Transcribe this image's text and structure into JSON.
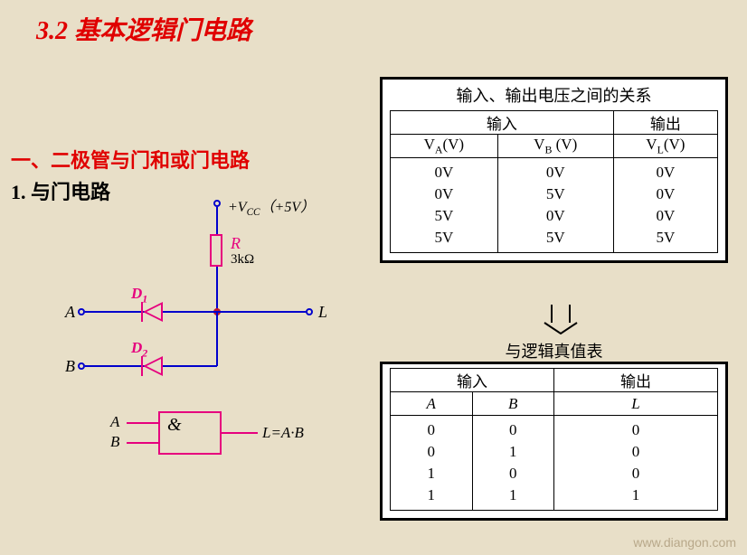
{
  "title": "3.2 基本逻辑门电路",
  "section": "一、二极管与门和或门电路",
  "subsection": "1. 与门电路",
  "circuit": {
    "vcc_label": "+VCC（+5V）",
    "r_label": "R",
    "r_value": "3kΩ",
    "d1": "D1",
    "d2": "D2",
    "a": "A",
    "b": "B",
    "l": "L",
    "gate_a": "A",
    "gate_b": "B",
    "gate_sym": "&",
    "gate_out": "L=A·B",
    "colors": {
      "wire": "#0000cc",
      "component": "#e6007e",
      "node": "#c0192f"
    }
  },
  "table1": {
    "title": "输入、输出电压之间的关系",
    "header_in": "输入",
    "header_out": "输出",
    "col_va": "VA(V)",
    "col_vb": "VB (V)",
    "col_vl": "VL(V)",
    "rows": [
      [
        "0V",
        "0V",
        "0V"
      ],
      [
        "0V",
        "5V",
        "0V"
      ],
      [
        "5V",
        "0V",
        "0V"
      ],
      [
        "5V",
        "5V",
        "5V"
      ]
    ]
  },
  "table2": {
    "title": "与逻辑真值表",
    "header_in": "输入",
    "header_out": "输出",
    "col_a": "A",
    "col_b": "B",
    "col_l": "L",
    "rows": [
      [
        "0",
        "0",
        "0"
      ],
      [
        "0",
        "1",
        "0"
      ],
      [
        "1",
        "0",
        "0"
      ],
      [
        "1",
        "1",
        "1"
      ]
    ]
  },
  "watermark": "www.diangon.com"
}
